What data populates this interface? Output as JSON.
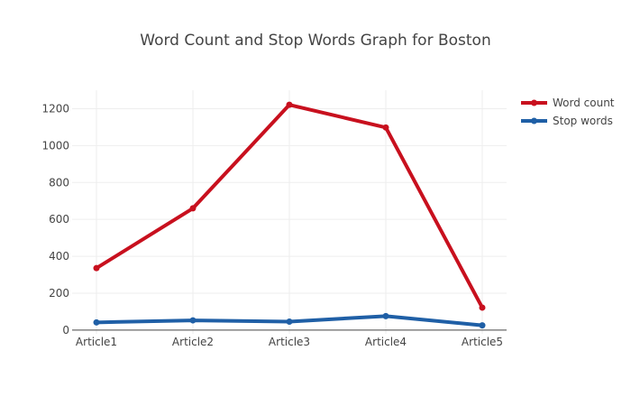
{
  "chart_data": {
    "type": "line",
    "title": "Word Count and Stop Words Graph for Boston",
    "xlabel": "",
    "ylabel": "",
    "categories": [
      "Article1",
      "Article2",
      "Article3",
      "Article4",
      "Article5"
    ],
    "ylim": [
      -20,
      1300
    ],
    "yticks": [
      0,
      200,
      400,
      600,
      800,
      1000,
      1200
    ],
    "grid": true,
    "legend_position": "top-right",
    "series": [
      {
        "name": "Word count",
        "color": "#c8101e",
        "values": [
          336,
          660,
          1221,
          1098,
          122
        ]
      },
      {
        "name": "Stop words",
        "color": "#1f5fa6",
        "values": [
          42,
          53,
          46,
          76,
          26
        ]
      }
    ]
  }
}
